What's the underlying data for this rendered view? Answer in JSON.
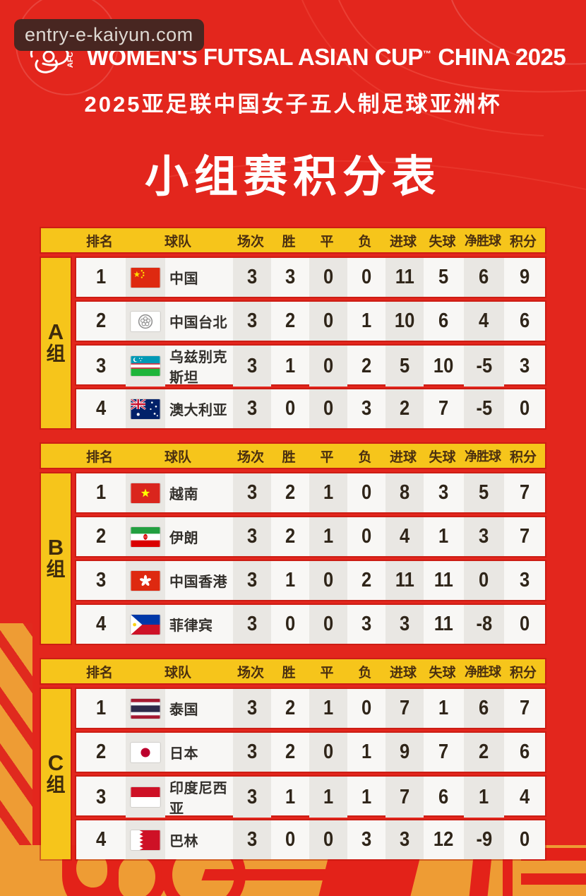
{
  "watermark": {
    "text": "entry-e-kaiyun.com"
  },
  "header": {
    "logo_text": "AFC",
    "title": "WOMEN'S FUTSAL ASIAN CUP",
    "trademark": "™",
    "title_suffix": "CHINA 2025",
    "subtitle": "2025亚足联中国女子五人制足球亚洲杯",
    "main_title": "小组赛积分表"
  },
  "table_headers": [
    "排名",
    "球队",
    "场次",
    "胜",
    "平",
    "负",
    "进球",
    "失球",
    "净胜球",
    "积分"
  ],
  "groups": [
    {
      "letter": "A",
      "suffix": "组",
      "rows": [
        {
          "rank": "1",
          "team": "中国",
          "flag": "cn",
          "played": "3",
          "won": "3",
          "drawn": "0",
          "lost": "0",
          "goals_for": "11",
          "goals_against": "5",
          "goal_diff": "6",
          "points": "9"
        },
        {
          "rank": "2",
          "team": "中国台北",
          "flag": "tw",
          "played": "3",
          "won": "2",
          "drawn": "0",
          "lost": "1",
          "goals_for": "10",
          "goals_against": "6",
          "goal_diff": "4",
          "points": "6"
        },
        {
          "rank": "3",
          "team": "乌兹别克斯坦",
          "flag": "uz",
          "played": "3",
          "won": "1",
          "drawn": "0",
          "lost": "2",
          "goals_for": "5",
          "goals_against": "10",
          "goal_diff": "-5",
          "points": "3"
        },
        {
          "rank": "4",
          "team": "澳大利亚",
          "flag": "au",
          "played": "3",
          "won": "0",
          "drawn": "0",
          "lost": "3",
          "goals_for": "2",
          "goals_against": "7",
          "goal_diff": "-5",
          "points": "0"
        }
      ]
    },
    {
      "letter": "B",
      "suffix": "组",
      "rows": [
        {
          "rank": "1",
          "team": "越南",
          "flag": "vn",
          "played": "3",
          "won": "2",
          "drawn": "1",
          "lost": "0",
          "goals_for": "8",
          "goals_against": "3",
          "goal_diff": "5",
          "points": "7"
        },
        {
          "rank": "2",
          "team": "伊朗",
          "flag": "ir",
          "played": "3",
          "won": "2",
          "drawn": "1",
          "lost": "0",
          "goals_for": "4",
          "goals_against": "1",
          "goal_diff": "3",
          "points": "7"
        },
        {
          "rank": "3",
          "team": "中国香港",
          "flag": "hk",
          "played": "3",
          "won": "1",
          "drawn": "0",
          "lost": "2",
          "goals_for": "11",
          "goals_against": "11",
          "goal_diff": "0",
          "points": "3"
        },
        {
          "rank": "4",
          "team": "菲律宾",
          "flag": "ph",
          "played": "3",
          "won": "0",
          "drawn": "0",
          "lost": "3",
          "goals_for": "3",
          "goals_against": "11",
          "goal_diff": "-8",
          "points": "0"
        }
      ]
    },
    {
      "letter": "C",
      "suffix": "组",
      "rows": [
        {
          "rank": "1",
          "team": "泰国",
          "flag": "th",
          "played": "3",
          "won": "2",
          "drawn": "1",
          "lost": "0",
          "goals_for": "7",
          "goals_against": "1",
          "goal_diff": "6",
          "points": "7"
        },
        {
          "rank": "2",
          "team": "日本",
          "flag": "jp",
          "played": "3",
          "won": "2",
          "drawn": "0",
          "lost": "1",
          "goals_for": "9",
          "goals_against": "7",
          "goal_diff": "2",
          "points": "6"
        },
        {
          "rank": "3",
          "team": "印度尼西亚",
          "flag": "id",
          "played": "3",
          "won": "1",
          "drawn": "1",
          "lost": "1",
          "goals_for": "7",
          "goals_against": "6",
          "goal_diff": "1",
          "points": "4"
        },
        {
          "rank": "4",
          "team": "巴林",
          "flag": "bh",
          "played": "3",
          "won": "0",
          "drawn": "0",
          "lost": "3",
          "goals_for": "3",
          "goals_against": "12",
          "goal_diff": "-9",
          "points": "0"
        }
      ]
    }
  ],
  "colors": {
    "background_red": "#E3261D",
    "band_yellow": "#F6C51B",
    "row_white": "#F8F7F5",
    "row_shade": "#E9E7E3",
    "text_dark": "#2F2519",
    "header_text": "#4A2F10",
    "orange_band": "#EE9C34",
    "watermark_bg": "#482621",
    "watermark_text": "#DED9D3",
    "title_text": "#FFFFFF"
  }
}
